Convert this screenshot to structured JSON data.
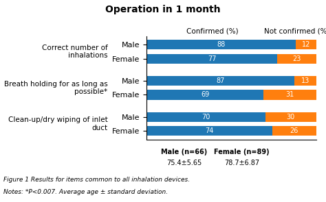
{
  "chart_data": {
    "type": "bar",
    "orientation": "horizontal",
    "stacked": true,
    "title": "Operation in 1 month",
    "categories": [
      "Male",
      "Female",
      "Male",
      "Female",
      "Male",
      "Female"
    ],
    "category_groups": [
      "Correct number of inhalations",
      "Breath holding for as long as possible*",
      "Clean-up/dry wiping of inlet duct"
    ],
    "series": [
      {
        "name": "Confirmed (%)",
        "values": [
          88,
          77,
          87,
          69,
          70,
          74
        ]
      },
      {
        "name": "Not confirmed (%)",
        "values": [
          12,
          23,
          13,
          31,
          30,
          26
        ]
      }
    ],
    "xlim": [
      0,
      100
    ],
    "data_labels": true,
    "tick_labels": "y",
    "grid": false,
    "annotations": [
      [
        "Male (n=66)",
        "75.4±5.65"
      ],
      [
        "Female (n=89)",
        "78.7±6.87"
      ]
    ],
    "notes": [
      "Figure 1 Results for items common to all inhalation devices.",
      "Notes: *P<0.007. Average age ± standard deviation."
    ]
  }
}
